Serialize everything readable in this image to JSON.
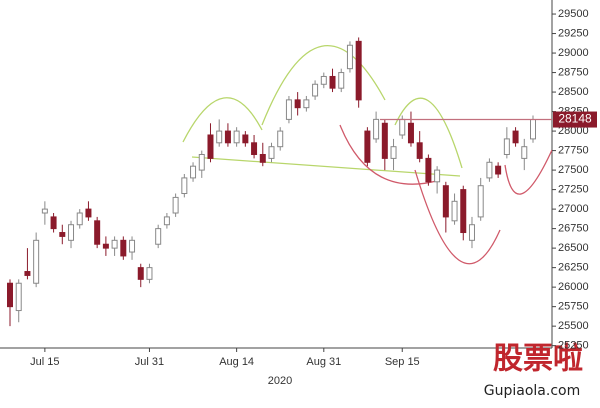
{
  "chart_data": {
    "type": "candlestick",
    "x_axis_label": "2020",
    "categories": [
      null,
      null,
      null,
      null,
      "Jul 15",
      null,
      null,
      null,
      null,
      null,
      null,
      null,
      null,
      null,
      null,
      null,
      "Jul 31",
      null,
      null,
      null,
      null,
      null,
      null,
      null,
      null,
      null,
      "Aug 14",
      null,
      null,
      null,
      null,
      null,
      null,
      null,
      null,
      null,
      "Aug 31",
      null,
      null,
      null,
      null,
      null,
      null,
      null,
      null,
      "Sep 15",
      null,
      null,
      null,
      null,
      null,
      null,
      null,
      null,
      null,
      null,
      null,
      null,
      null,
      null,
      null
    ],
    "open": [
      26050,
      25700,
      26200,
      26050,
      26950,
      26900,
      26700,
      26600,
      26800,
      27000,
      26850,
      26550,
      26500,
      26600,
      26450,
      26250,
      26100,
      26550,
      26800,
      26950,
      27200,
      27400,
      27500,
      27950,
      27850,
      28000,
      27850,
      27950,
      27850,
      27700,
      27650,
      27800,
      28150,
      28400,
      28300,
      28450,
      28600,
      28700,
      28550,
      28800,
      29150,
      28000,
      27900,
      28100,
      27650,
      27950,
      28100,
      27850,
      27650,
      27350,
      27300,
      26850,
      27250,
      26600,
      26900,
      27400,
      27550,
      27700,
      28000,
      27650,
      27900
    ],
    "high": [
      26100,
      26100,
      26500,
      26700,
      27100,
      26950,
      26800,
      26850,
      27000,
      27100,
      26900,
      26650,
      26650,
      26650,
      26650,
      26300,
      26300,
      26800,
      26950,
      27200,
      27450,
      27600,
      27750,
      28100,
      28150,
      28100,
      28050,
      28000,
      27950,
      27850,
      27850,
      28050,
      28450,
      28500,
      28450,
      28650,
      28750,
      28800,
      28800,
      29150,
      29200,
      28050,
      28250,
      28150,
      27900,
      28200,
      28250,
      28000,
      27700,
      27550,
      27350,
      27200,
      27300,
      26900,
      27400,
      27650,
      27600,
      28050,
      28050,
      27900,
      28200
    ],
    "low": [
      25500,
      25550,
      26100,
      26000,
      26800,
      26700,
      26550,
      26500,
      26750,
      26850,
      26500,
      26400,
      26400,
      26350,
      26350,
      26000,
      26050,
      26500,
      26750,
      26900,
      27150,
      27350,
      27400,
      27600,
      27800,
      27800,
      27800,
      27800,
      27650,
      27550,
      27600,
      27750,
      28100,
      28200,
      28250,
      28400,
      28550,
      28500,
      28500,
      28750,
      28300,
      27550,
      27850,
      27500,
      27500,
      27900,
      27800,
      27600,
      27300,
      27200,
      26700,
      26800,
      26600,
      26500,
      26850,
      27350,
      27400,
      27650,
      27800,
      27500,
      27850
    ],
    "close": [
      25750,
      26050,
      26150,
      26600,
      27000,
      26750,
      26650,
      26800,
      26950,
      26900,
      26550,
      26500,
      26600,
      26400,
      26600,
      26100,
      26250,
      26750,
      26900,
      27150,
      27400,
      27550,
      27700,
      27650,
      28000,
      27850,
      28000,
      27850,
      27700,
      27600,
      27800,
      28000,
      28400,
      28300,
      28400,
      28600,
      28700,
      28550,
      28750,
      29100,
      28400,
      27600,
      28150,
      27650,
      27800,
      28150,
      27850,
      27650,
      27350,
      27500,
      26900,
      27100,
      26700,
      26800,
      27300,
      27600,
      27450,
      27900,
      27850,
      27800,
      28148
    ],
    "up_color": "#ffffff",
    "down_color": "#8b1a2b",
    "last_price": 28148,
    "ylim": [
      25220,
      29680
    ],
    "yticks": [
      25250,
      25500,
      25750,
      26000,
      26250,
      26500,
      26750,
      27000,
      27250,
      27500,
      27750,
      28000,
      28250,
      28500,
      28750,
      29000,
      29250,
      29500
    ]
  },
  "watermark": {
    "title": "股票啦",
    "url": "Gupiaola.com"
  }
}
